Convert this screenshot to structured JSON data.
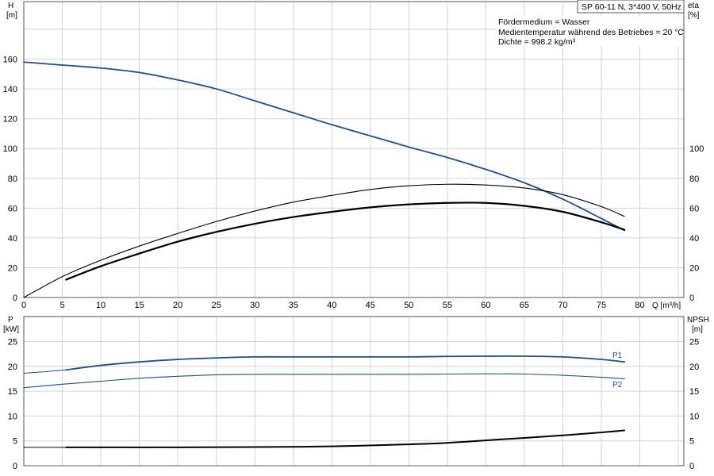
{
  "chart_data": [
    {
      "type": "line",
      "title": "",
      "badge": "SP 60-11 N, 3*400 V, 50Hz",
      "notes": [
        "Fördermedium = Wasser",
        "Medientemperatur während des Betriebes = 20 °C",
        "Dichte = 998.2 kg/m³"
      ],
      "xlabel": "Q [m³/h]",
      "xlim": [
        0,
        85
      ],
      "xticks": [
        0,
        5,
        10,
        15,
        20,
        25,
        30,
        35,
        40,
        45,
        50,
        55,
        60,
        65,
        70,
        75,
        80
      ],
      "ylabel_left": {
        "name": "H",
        "unit": "[m]"
      },
      "ylim_left": [
        0,
        180
      ],
      "yticks_left": [
        0,
        20,
        40,
        60,
        80,
        100,
        120,
        140,
        160
      ],
      "ylabel_right": {
        "name": "eta",
        "unit": "[%]"
      },
      "ylim_right": [
        0,
        180
      ],
      "yticks_right": [
        0,
        20,
        40,
        60,
        80,
        100
      ],
      "grid": true,
      "series": [
        {
          "key": "H",
          "axis": "left",
          "color": "#1f4e8c",
          "width": 1.8,
          "x": [
            0,
            5,
            10,
            15,
            20,
            25,
            30,
            35,
            40,
            45,
            50,
            55,
            60,
            65,
            70,
            75,
            78
          ],
          "y": [
            158,
            156,
            154,
            151,
            146,
            140,
            132,
            124,
            116,
            108.5,
            101,
            94,
            86,
            77,
            66,
            53,
            45
          ]
        },
        {
          "key": "eta_total",
          "axis": "right",
          "color": "#000000",
          "width": 2.2,
          "x": [
            5.5,
            10,
            15,
            20,
            25,
            30,
            35,
            40,
            45,
            50,
            55,
            60,
            65,
            70,
            75,
            78
          ],
          "y": [
            12,
            21,
            29.5,
            37.5,
            44,
            49.5,
            54,
            57.5,
            60.5,
            62.5,
            63.5,
            63.5,
            61.5,
            57.5,
            50.5,
            45.5
          ]
        },
        {
          "key": "eta_pump",
          "axis": "right",
          "color": "#000000",
          "width": 1.1,
          "x": [
            0,
            5,
            10,
            15,
            20,
            25,
            30,
            35,
            40,
            45,
            50,
            55,
            60,
            65,
            70,
            75,
            78
          ],
          "y": [
            0,
            14,
            25,
            34.5,
            43,
            51,
            58,
            64,
            68.5,
            72.5,
            75,
            76,
            75.5,
            73.5,
            69,
            61,
            54.5
          ]
        }
      ]
    },
    {
      "type": "line",
      "title": "",
      "xlim": [
        0,
        85
      ],
      "ylabel_left": {
        "name": "P",
        "unit": "[kW]"
      },
      "ylim_left": [
        0,
        30
      ],
      "yticks_left": [
        0,
        5,
        10,
        15,
        20,
        25
      ],
      "ylabel_right": {
        "name": "NPSH",
        "unit": "[m]"
      },
      "ylim_right": [
        0,
        30
      ],
      "yticks_right": [
        0,
        5,
        10,
        15,
        20,
        25
      ],
      "grid": true,
      "series": [
        {
          "name": "P1",
          "axis": "left",
          "color": "#1f4e8c",
          "width": 1.8,
          "x": [
            5.5,
            10,
            15,
            20,
            25,
            30,
            35,
            40,
            45,
            50,
            55,
            60,
            65,
            70,
            75,
            78
          ],
          "y": [
            19.3,
            20.2,
            20.9,
            21.4,
            21.7,
            21.9,
            21.9,
            21.9,
            21.9,
            21.9,
            22,
            22.05,
            22.05,
            21.9,
            21.4,
            20.9
          ]
        },
        {
          "key": "P1_ext",
          "axis": "left",
          "color": "#1f4e8c",
          "width": 1.0,
          "x": [
            0,
            2.5,
            5.5
          ],
          "y": [
            18.6,
            18.9,
            19.3
          ]
        },
        {
          "name": "P2",
          "axis": "left",
          "color": "#1f4e8c",
          "width": 1.1,
          "x": [
            0,
            5,
            10,
            15,
            20,
            25,
            30,
            35,
            40,
            45,
            50,
            55,
            60,
            65,
            70,
            75,
            78
          ],
          "y": [
            15.7,
            16.4,
            17,
            17.6,
            18,
            18.3,
            18.4,
            18.4,
            18.4,
            18.4,
            18.4,
            18.45,
            18.5,
            18.45,
            18.2,
            17.8,
            17.5
          ]
        },
        {
          "key": "NPSH",
          "axis": "right",
          "color": "#000000",
          "width": 2.0,
          "x": [
            5.5,
            10,
            20,
            30,
            40,
            50,
            55,
            60,
            65,
            70,
            75,
            78
          ],
          "y": [
            3.7,
            3.7,
            3.7,
            3.75,
            3.9,
            4.3,
            4.6,
            5.1,
            5.6,
            6.1,
            6.7,
            7.1
          ]
        },
        {
          "key": "NPSH_ext",
          "axis": "right",
          "color": "#000000",
          "width": 1.0,
          "x": [
            0,
            5.5
          ],
          "y": [
            3.7,
            3.7
          ]
        }
      ]
    }
  ]
}
